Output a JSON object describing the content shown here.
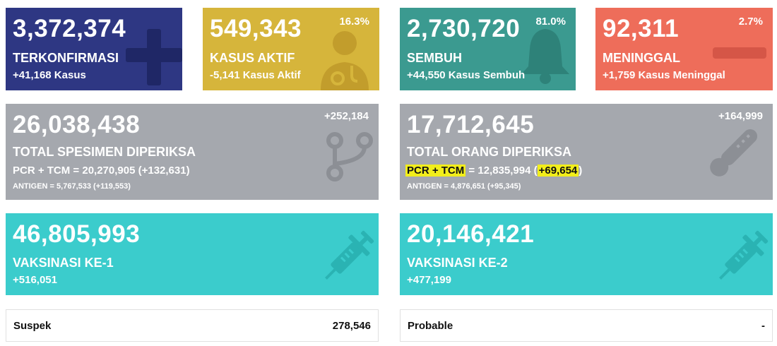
{
  "colors": {
    "confirmed": "#2e3783",
    "active": "#d6b53b",
    "recovered": "#3b9a90",
    "deaths": "#ee6d5a",
    "tests": "#a5a8ae",
    "vaccine": "#3bcccc",
    "highlight": "#f2ee1b"
  },
  "confirmed": {
    "value": "3,372,374",
    "label": "TERKONFIRMASI",
    "delta": "+41,168 Kasus",
    "icon": "plus-icon"
  },
  "active": {
    "value": "549,343",
    "label": "KASUS AKTIF",
    "delta": "-5,141 Kasus Aktif",
    "pct": "16.3%",
    "icon": "doctor-icon"
  },
  "recovered": {
    "value": "2,730,720",
    "label": "SEMBUH",
    "delta": "+44,550 Kasus Sembuh",
    "pct": "81.0%",
    "icon": "bell-icon"
  },
  "deaths": {
    "value": "92,311",
    "label": "MENINGGAL",
    "delta": "+1,759 Kasus Meninggal",
    "pct": "2.7%",
    "icon": "minus-icon"
  },
  "specimens": {
    "value": "26,038,438",
    "label": "TOTAL SPESIMEN DIPERIKSA",
    "increase": "+252,184",
    "pcr_line": "PCR + TCM = 20,270,905 (+132,631)",
    "antigen_line": "ANTIGEN = 5,767,533 (+119,553)",
    "icon": "branch-icon"
  },
  "people": {
    "value": "17,712,645",
    "label": "TOTAL ORANG DIPERIKSA",
    "increase": "+164,999",
    "pcr_prefix": "PCR + TCM",
    "pcr_mid": " = 12,835,994 (",
    "pcr_delta": "+69,654",
    "pcr_suffix": ")",
    "antigen_line": "ANTIGEN = 4,876,651 (+95,345)",
    "icon": "thermometer-icon"
  },
  "vaccine1": {
    "value": "46,805,993",
    "label": "VAKSINASI KE-1",
    "delta": "+516,051",
    "icon": "syringe-icon"
  },
  "vaccine2": {
    "value": "20,146,421",
    "label": "VAKSINASI KE-2",
    "delta": "+477,199",
    "icon": "syringe-icon"
  },
  "suspect": {
    "label": "Suspek",
    "value": "278,546"
  },
  "probable": {
    "label": "Probable",
    "value": "-"
  }
}
